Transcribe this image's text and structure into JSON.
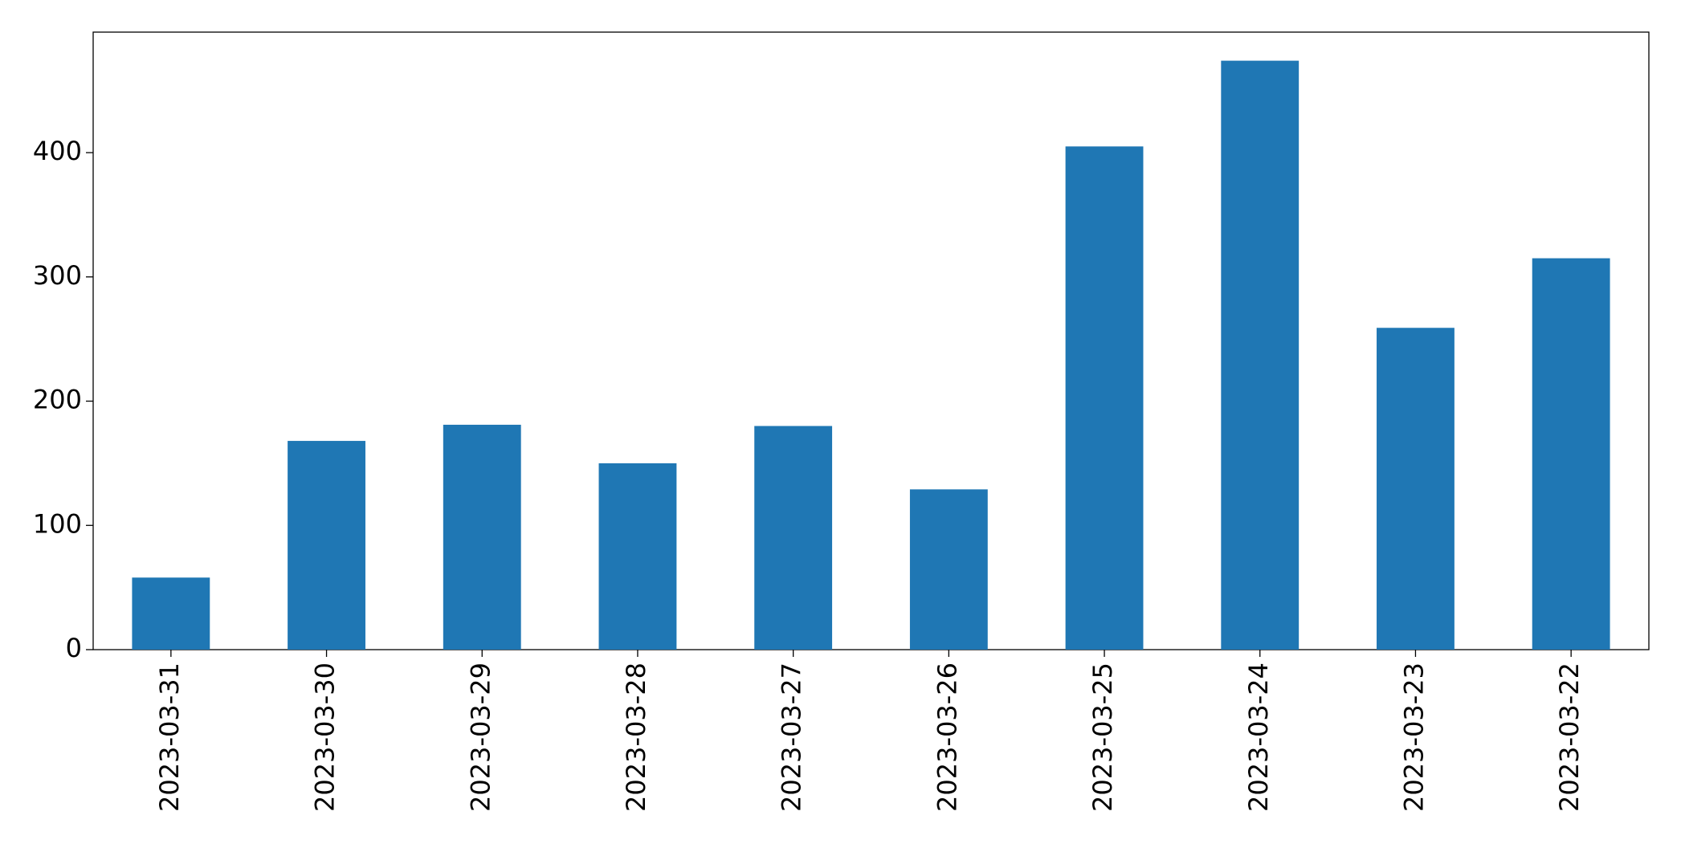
{
  "chart_data": {
    "type": "bar",
    "categories": [
      "2023-03-31",
      "2023-03-30",
      "2023-03-29",
      "2023-03-28",
      "2023-03-27",
      "2023-03-26",
      "2023-03-25",
      "2023-03-24",
      "2023-03-23",
      "2023-03-22"
    ],
    "values": [
      58,
      168,
      181,
      150,
      180,
      129,
      405,
      474,
      259,
      315
    ],
    "color": "#1f77b4",
    "ylim": [
      0,
      497
    ],
    "yticks": [
      0,
      100,
      200,
      300,
      400
    ],
    "grid": false
  }
}
